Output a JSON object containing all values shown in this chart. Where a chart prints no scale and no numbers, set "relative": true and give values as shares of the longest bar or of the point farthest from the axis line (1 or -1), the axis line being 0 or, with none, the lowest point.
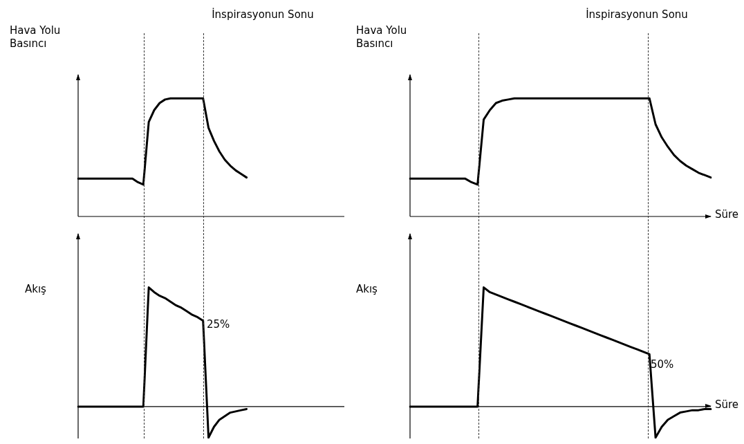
{
  "chart_data": [
    {
      "type": "line",
      "relative": true,
      "ylabel": "Hava Yolu Basıncı",
      "marker": "none",
      "line_style": "solid",
      "categories": [
        null,
        null,
        null,
        null,
        null,
        null,
        null,
        null,
        null,
        null,
        null,
        null,
        null,
        null,
        null,
        null,
        null,
        null,
        null,
        null,
        null,
        null,
        null,
        null,
        null,
        null,
        null,
        null,
        null,
        null,
        null,
        null,
        null,
        null,
        null,
        null,
        null,
        null,
        null,
        null,
        null,
        null,
        null,
        null,
        null,
        null,
        null,
        null,
        null,
        null
      ],
      "series": [
        {
          "color": "#000000",
          "values": [
            0.32,
            0.32,
            0.32,
            0.32,
            0.32,
            0.32,
            0.32,
            0.32,
            0.32,
            0.32,
            0.32,
            0.29,
            0.27,
            0.8,
            0.9,
            0.96,
            0.99,
            1,
            1,
            1,
            1,
            1,
            1,
            1,
            0.75,
            0.64,
            0.55,
            0.48,
            0.43,
            0.39,
            0.36,
            0.33,
            null,
            null,
            null,
            null,
            null,
            null,
            null,
            null,
            null,
            null,
            null,
            null,
            null,
            null,
            null,
            null,
            null,
            null
          ]
        }
      ],
      "annotations": [
        "İnspirasyonun Sonu"
      ]
    },
    {
      "type": "line",
      "relative": true,
      "ylabel": "Hava Yolu Basıncı",
      "xlabel": "Süre",
      "marker": "none",
      "line_style": "solid",
      "categories": [
        null,
        null,
        null,
        null,
        null,
        null,
        null,
        null,
        null,
        null,
        null,
        null,
        null,
        null,
        null,
        null,
        null,
        null,
        null,
        null,
        null,
        null,
        null,
        null,
        null,
        null,
        null,
        null,
        null,
        null,
        null,
        null,
        null,
        null,
        null,
        null,
        null,
        null,
        null,
        null,
        null,
        null,
        null,
        null,
        null,
        null,
        null,
        null,
        null,
        null
      ],
      "series": [
        {
          "color": "#000000",
          "values": [
            0.32,
            0.32,
            0.32,
            0.32,
            0.32,
            0.32,
            0.32,
            0.32,
            0.32,
            0.32,
            0.29,
            0.27,
            0.82,
            0.9,
            0.96,
            0.98,
            0.99,
            1,
            1,
            1,
            1,
            1,
            1,
            1,
            1,
            1,
            1,
            1,
            1,
            1,
            1,
            1,
            1,
            1,
            1,
            1,
            1,
            1,
            1,
            1,
            0.78,
            0.67,
            0.59,
            0.52,
            0.47,
            0.43,
            0.4,
            0.37,
            0.35,
            0.33
          ]
        }
      ],
      "annotations": [
        "İnspirasyonun Sonu"
      ]
    },
    {
      "type": "line",
      "relative": true,
      "ylabel": "Akış",
      "marker": "none",
      "line_style": "solid",
      "categories": [
        null,
        null,
        null,
        null,
        null,
        null,
        null,
        null,
        null,
        null,
        null,
        null,
        null,
        null,
        null,
        null,
        null,
        null,
        null,
        null,
        null,
        null,
        null,
        null,
        null,
        null,
        null,
        null,
        null,
        null,
        null,
        null,
        null,
        null,
        null,
        null,
        null,
        null,
        null,
        null,
        null,
        null,
        null,
        null,
        null,
        null,
        null,
        null,
        null,
        null
      ],
      "series": [
        {
          "color": "#000000",
          "values": [
            0,
            0,
            0,
            0,
            0,
            0,
            0,
            0,
            0,
            0,
            0,
            0,
            0,
            1,
            0.96,
            0.93,
            0.91,
            0.88,
            0.85,
            0.83,
            0.8,
            0.77,
            0.75,
            0.72,
            -0.26,
            -0.17,
            -0.11,
            -0.08,
            -0.05,
            -0.04,
            -0.03,
            -0.02,
            null,
            null,
            null,
            null,
            null,
            null,
            null,
            null,
            null,
            null,
            null,
            null,
            null,
            null,
            null,
            null,
            null,
            null
          ]
        }
      ],
      "annotations": [
        "25%"
      ]
    },
    {
      "type": "line",
      "relative": true,
      "ylabel": "Akış",
      "xlabel": "Süre",
      "marker": "none",
      "line_style": "solid",
      "categories": [
        null,
        null,
        null,
        null,
        null,
        null,
        null,
        null,
        null,
        null,
        null,
        null,
        null,
        null,
        null,
        null,
        null,
        null,
        null,
        null,
        null,
        null,
        null,
        null,
        null,
        null,
        null,
        null,
        null,
        null,
        null,
        null,
        null,
        null,
        null,
        null,
        null,
        null,
        null,
        null,
        null,
        null,
        null,
        null,
        null,
        null,
        null,
        null,
        null,
        null
      ],
      "series": [
        {
          "color": "#000000",
          "values": [
            0,
            0,
            0,
            0,
            0,
            0,
            0,
            0,
            0,
            0,
            0,
            0,
            1,
            0.96,
            0.94,
            0.92,
            0.9,
            0.88,
            0.86,
            0.84,
            0.82,
            0.8,
            0.78,
            0.76,
            0.74,
            0.72,
            0.7,
            0.68,
            0.66,
            0.64,
            0.62,
            0.6,
            0.58,
            0.56,
            0.54,
            0.52,
            0.5,
            0.48,
            0.46,
            0.44,
            -0.26,
            -0.17,
            -0.11,
            -0.08,
            -0.05,
            -0.04,
            -0.03,
            -0.03,
            -0.02,
            -0.02
          ]
        }
      ],
      "annotations": [
        "50%"
      ]
    }
  ]
}
